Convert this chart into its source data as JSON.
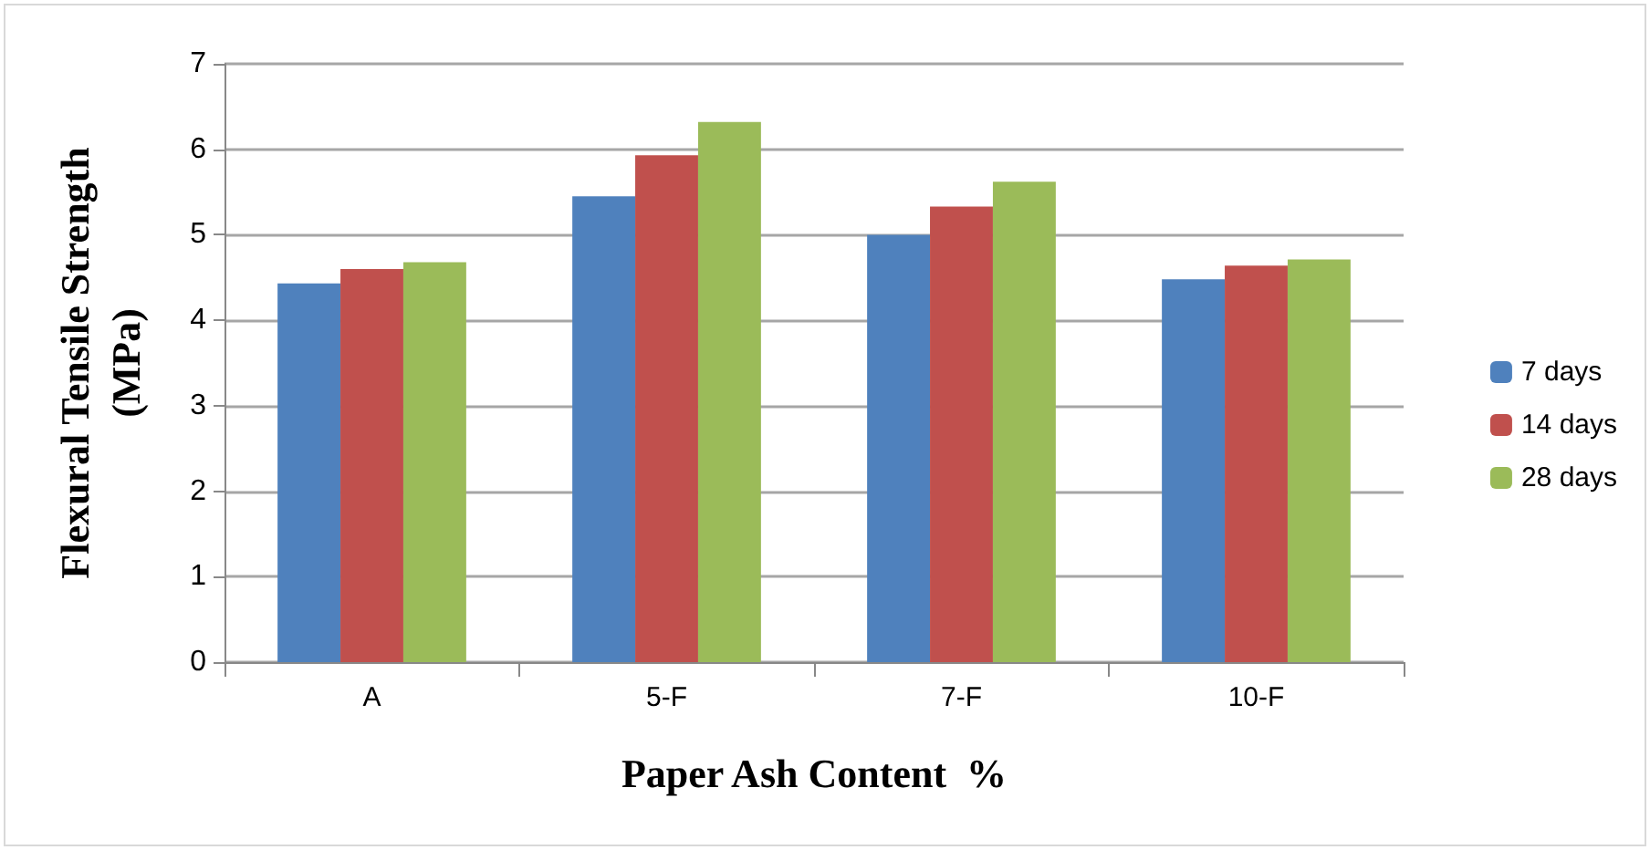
{
  "chart_data": {
    "type": "bar",
    "xlabel": "Paper Ash Content  %",
    "ylabel": "Flexural Tensile Strength\n(MPa)",
    "categories": [
      "A",
      "5-F",
      "7-F",
      "10-F"
    ],
    "series": [
      {
        "name": "7 days",
        "color": "#4f81bd",
        "values": [
          4.43,
          5.45,
          5.0,
          4.48
        ]
      },
      {
        "name": "14 days",
        "color": "#c0504d",
        "values": [
          4.6,
          5.93,
          5.33,
          4.64
        ]
      },
      {
        "name": "28 days",
        "color": "#9bbb59",
        "values": [
          4.68,
          6.32,
          5.62,
          4.71
        ]
      }
    ],
    "ylim": [
      0,
      7
    ],
    "yticks": [
      0,
      1,
      2,
      3,
      4,
      5,
      6,
      7
    ],
    "grid": "y",
    "legend": "right"
  }
}
